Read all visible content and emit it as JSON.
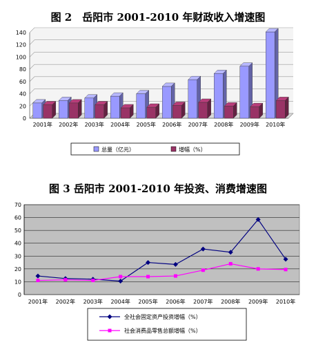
{
  "chart_data": [
    {
      "type": "bar",
      "title": "图 2　岳阳市 2001-2010 年财政收入增速图",
      "categories": [
        "2001年",
        "2002年",
        "2003年",
        "2004年",
        "2005年",
        "2006年",
        "2007年",
        "2008年",
        "2009年",
        "2010年"
      ],
      "series": [
        {
          "name": "总量（亿元）",
          "values": [
            25,
            29,
            33,
            36,
            40,
            52,
            63,
            73,
            85,
            141
          ],
          "color": "#9999ff"
        },
        {
          "name": "增幅（%）",
          "values": [
            22,
            25,
            22,
            17,
            18,
            21,
            26,
            20,
            19,
            29
          ],
          "color": "#993366"
        }
      ],
      "ylim": [
        0,
        140
      ],
      "yticks": [
        0,
        20,
        40,
        60,
        80,
        100,
        120,
        140
      ],
      "grid": true,
      "legend": "bottom",
      "style": "3d"
    },
    {
      "type": "line",
      "title": "图 3  岳阳市 2001-2010 年投资、消费增速图",
      "categories": [
        "2001年",
        "2002年",
        "2003年",
        "2004年",
        "2005年",
        "2006年",
        "2007年",
        "2008年",
        "2009年",
        "2010年"
      ],
      "series": [
        {
          "name": "全社会固定资产投资增幅（%）",
          "values": [
            14.5,
            12.5,
            12,
            10.5,
            25,
            23.5,
            35.5,
            33,
            58.5,
            27.5
          ],
          "color": "#000080",
          "marker": "diamond"
        },
        {
          "name": "社会消费品零售总额增幅（%）",
          "values": [
            11,
            11.5,
            11,
            14,
            14,
            14.5,
            19,
            24,
            20,
            19.5
          ],
          "color": "#ff00ff",
          "marker": "square"
        }
      ],
      "ylim": [
        0,
        70
      ],
      "yticks": [
        0,
        10,
        20,
        30,
        40,
        50,
        60,
        70
      ],
      "grid": true,
      "legend": "bottom",
      "plot_background": "#c0c0c0"
    }
  ]
}
